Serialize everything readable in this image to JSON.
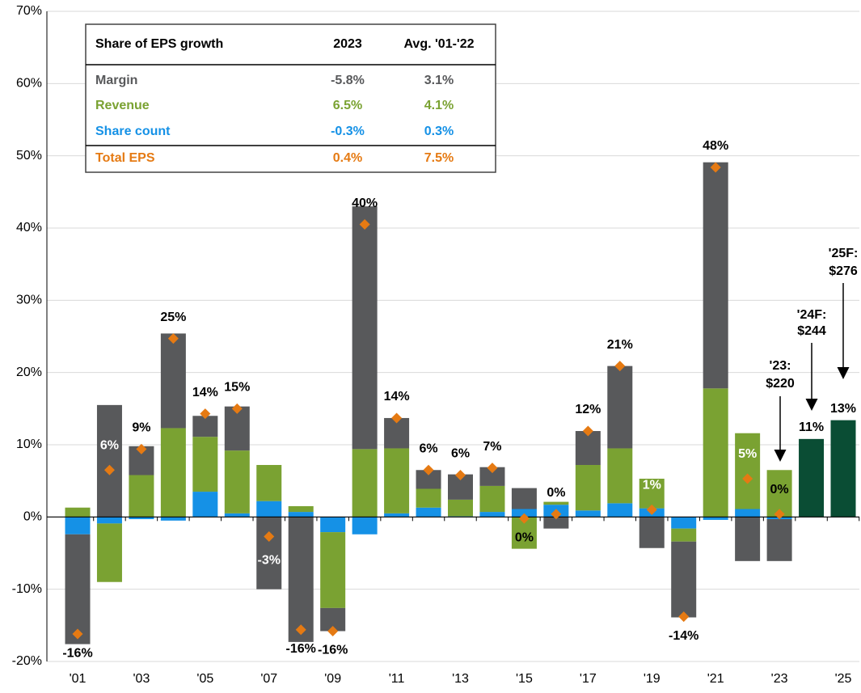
{
  "chart_data": {
    "type": "bar",
    "categories": [
      "'01",
      null,
      "'03",
      null,
      "'05",
      null,
      "'07",
      null,
      "'09",
      null,
      "'11",
      null,
      "'13",
      null,
      "'15",
      null,
      "'17",
      null,
      "'19",
      null,
      "'21",
      null,
      "'23",
      null,
      "'25"
    ],
    "series": [
      {
        "name": "Margin",
        "color": "#58595b",
        "values": [
          -15.2,
          15.5,
          4.0,
          13.1,
          2.9,
          6.1,
          -10.0,
          -17.3,
          -3.2,
          33.6,
          4.2,
          2.6,
          3.5,
          2.6,
          2.9,
          -1.6,
          4.7,
          11.4,
          -4.3,
          -10.5,
          31.3,
          -6.1,
          -5.8,
          null,
          null
        ]
      },
      {
        "name": "Revenue",
        "color": "#7aa232",
        "values": [
          1.3,
          -8.1,
          5.8,
          12.3,
          7.6,
          8.7,
          5.0,
          0.8,
          -10.5,
          9.4,
          9.0,
          2.6,
          2.3,
          3.6,
          -4.4,
          0.4,
          6.3,
          7.6,
          4.1,
          -1.8,
          17.8,
          10.5,
          6.5,
          null,
          null
        ]
      },
      {
        "name": "Share count",
        "color": "#1591e6",
        "values": [
          -2.4,
          -0.9,
          -0.3,
          -0.5,
          3.5,
          0.5,
          2.2,
          0.7,
          -2.1,
          -2.4,
          0.5,
          1.3,
          0.1,
          0.7,
          1.1,
          1.7,
          0.9,
          1.9,
          1.2,
          -1.6,
          -0.4,
          1.1,
          -0.3,
          null,
          null
        ]
      },
      {
        "name": "Total EPS",
        "color": "#e57a13",
        "mark": "diamond",
        "values": [
          -16.2,
          6.5,
          9.4,
          24.7,
          14.3,
          15.0,
          -2.7,
          -15.6,
          -15.8,
          40.5,
          13.7,
          6.5,
          5.8,
          6.8,
          -0.2,
          0.4,
          11.9,
          20.9,
          1.0,
          -13.8,
          48.4,
          5.3,
          0.4,
          null,
          null
        ],
        "value_labels": [
          "-16%",
          "6%",
          "9%",
          "25%",
          "14%",
          "15%",
          "-3%",
          "-16%",
          "-16%",
          "40%",
          "14%",
          "6%",
          "6%",
          "7%",
          "0%",
          "0%",
          "12%",
          "21%",
          "1%",
          "-14%",
          "48%",
          "5%",
          "0%",
          null,
          null
        ]
      },
      {
        "color": "#0a4d34",
        "values": [
          null,
          null,
          null,
          null,
          null,
          null,
          null,
          null,
          null,
          null,
          null,
          null,
          null,
          null,
          null,
          null,
          null,
          null,
          null,
          null,
          null,
          null,
          null,
          10.8,
          13.4
        ],
        "value_labels": [
          null,
          null,
          null,
          null,
          null,
          null,
          null,
          null,
          null,
          null,
          null,
          null,
          null,
          null,
          null,
          null,
          null,
          null,
          null,
          null,
          null,
          null,
          null,
          "11%",
          "13%"
        ]
      }
    ],
    "ylim": [
      -20,
      70
    ],
    "yticks": [
      {
        "value": -20,
        "label": "-20%"
      },
      {
        "value": -10,
        "label": "-10%"
      },
      {
        "value": 0,
        "label": "0%"
      },
      {
        "value": 10,
        "label": "10%"
      },
      {
        "value": 20,
        "label": "20%"
      },
      {
        "value": 30,
        "label": "30%"
      },
      {
        "value": 40,
        "label": "40%"
      },
      {
        "value": 50,
        "label": "50%"
      },
      {
        "value": 60,
        "label": "60%"
      },
      {
        "value": 70,
        "label": "70%"
      }
    ],
    "grid": true,
    "annotations": [
      [
        "'23:",
        "$220"
      ],
      [
        "'24F:",
        "$244"
      ],
      [
        "'25F:",
        "$276"
      ]
    ],
    "table": {
      "header": [
        "Share of EPS growth",
        "2023",
        "Avg. '01-'22"
      ],
      "rows": [
        [
          "-5.8%",
          "3.1%"
        ],
        [
          "6.5%",
          "4.1%"
        ],
        [
          "-0.3%",
          "0.3%"
        ],
        [
          "0.4%",
          "7.5%"
        ]
      ]
    }
  }
}
